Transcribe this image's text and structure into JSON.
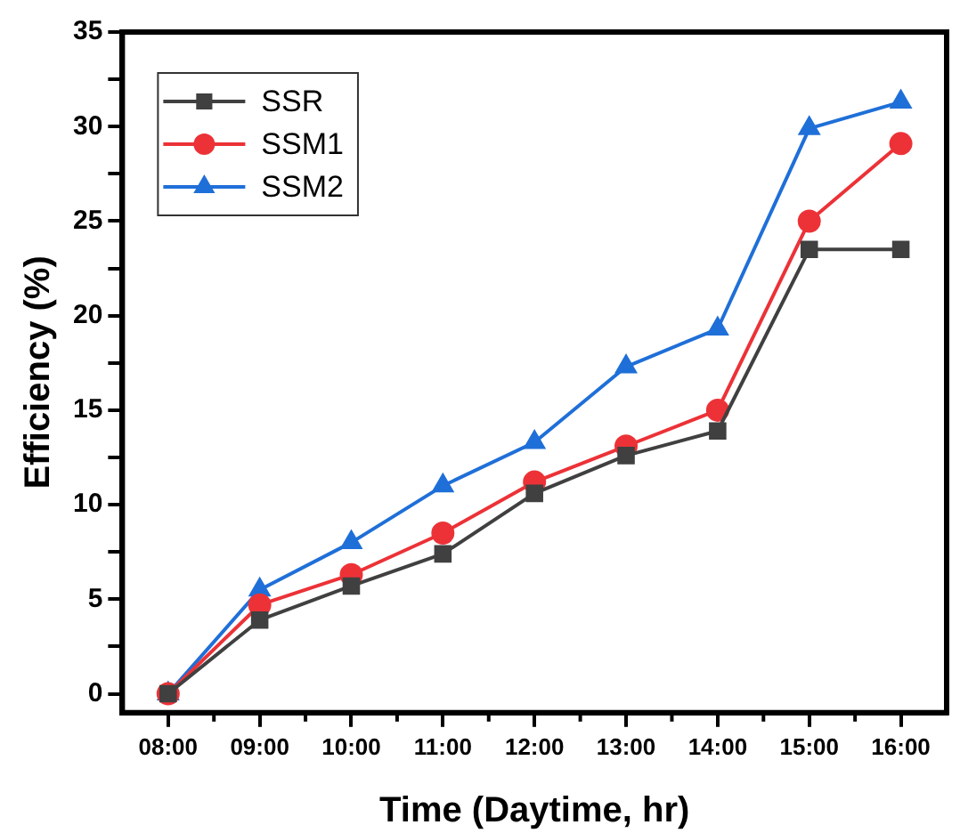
{
  "chart_data": {
    "type": "line",
    "xlabel": "Time (Daytime, hr)",
    "ylabel": "Efficiency (%)",
    "categories": [
      "08:00",
      "09:00",
      "10:00",
      "11:00",
      "12:00",
      "13:00",
      "14:00",
      "15:00",
      "16:00"
    ],
    "ylim": [
      -1,
      35
    ],
    "yticks": [
      0,
      {
        "value": 2.5,
        "label": null
      },
      5,
      {
        "value": 7.5,
        "label": null
      },
      10,
      {
        "value": 12.5,
        "label": null
      },
      15,
      {
        "value": 17.5,
        "label": null
      },
      20,
      {
        "value": 22.5,
        "label": null
      },
      25,
      {
        "value": 27.5,
        "label": null
      },
      30,
      {
        "value": 32.5,
        "label": null
      },
      35
    ],
    "grid": false,
    "legend": "top left",
    "line_style": "solid",
    "series": [
      {
        "name": "SSR",
        "color": "#404040",
        "marker": "square",
        "values": [
          0,
          3.9,
          5.7,
          7.4,
          10.6,
          12.6,
          13.9,
          23.5,
          23.5
        ]
      },
      {
        "name": "SSM1",
        "color": "#ec3237",
        "marker": "circle",
        "values": [
          0,
          4.7,
          6.3,
          8.5,
          11.2,
          13.1,
          15.0,
          25.0,
          29.1
        ]
      },
      {
        "name": "SSM2",
        "color": "#1f6fd8",
        "marker": "triangle",
        "values": [
          0,
          5.5,
          8.0,
          11.0,
          13.3,
          17.3,
          19.3,
          29.9,
          31.3
        ]
      }
    ]
  }
}
